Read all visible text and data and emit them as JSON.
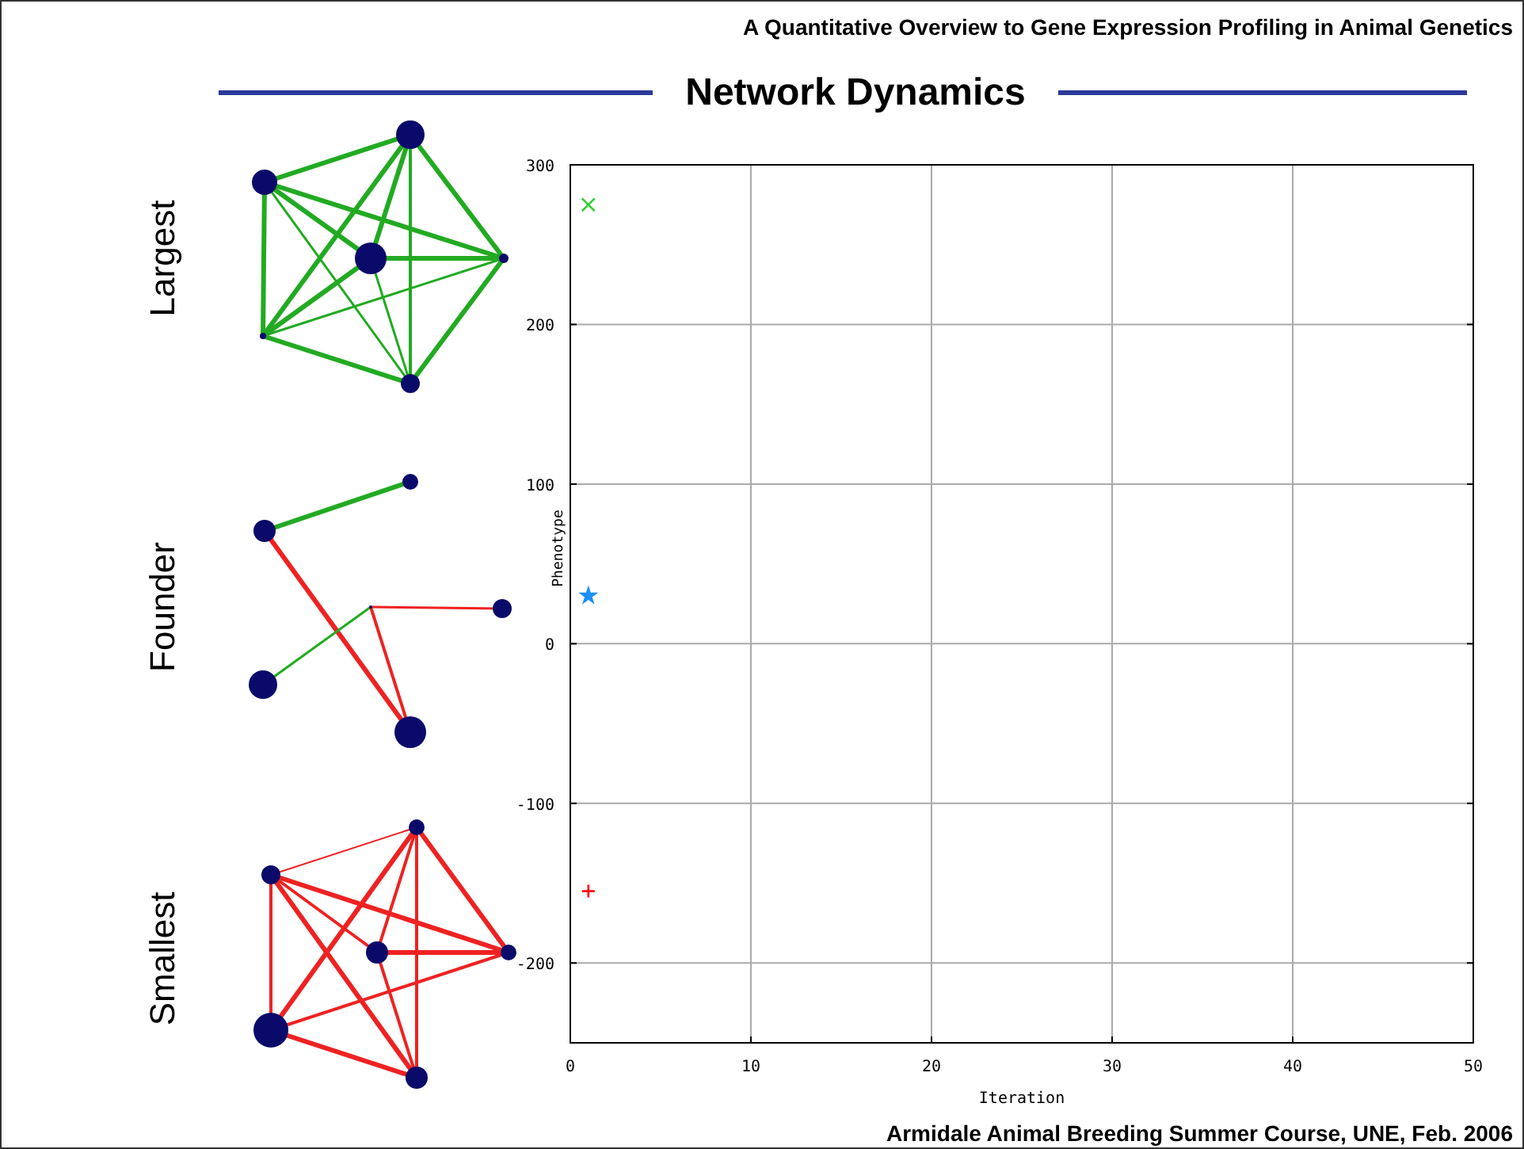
{
  "chart_data": {
    "type": "scatter",
    "title": "Network Dynamics",
    "subtitle": "A Quantitative Overview to Gene Expression Profiling in Animal Genetics",
    "xlabel": "Iteration",
    "ylabel": "Phenotype",
    "annotations": [
      "Largest",
      "Founder",
      "Smallest",
      "Armidale Animal Breeding Summer Course, UNE, Feb. 2006"
    ],
    "x": [
      1
    ],
    "series": [
      {
        "color": "#33cc33",
        "values": [
          275
        ],
        "marker": "cross"
      },
      {
        "color": "#1e90ff",
        "values": [
          30
        ],
        "marker": "star"
      },
      {
        "color": "#ff0000",
        "values": [
          -155
        ],
        "marker": "plus"
      }
    ],
    "xlim": [
      0,
      50
    ],
    "xticks": [
      0,
      10,
      20,
      30,
      40,
      50
    ],
    "ylim": [
      -250,
      300
    ],
    "yticks": [
      -200,
      -100,
      0,
      100,
      200,
      300
    ],
    "grid": true
  }
}
